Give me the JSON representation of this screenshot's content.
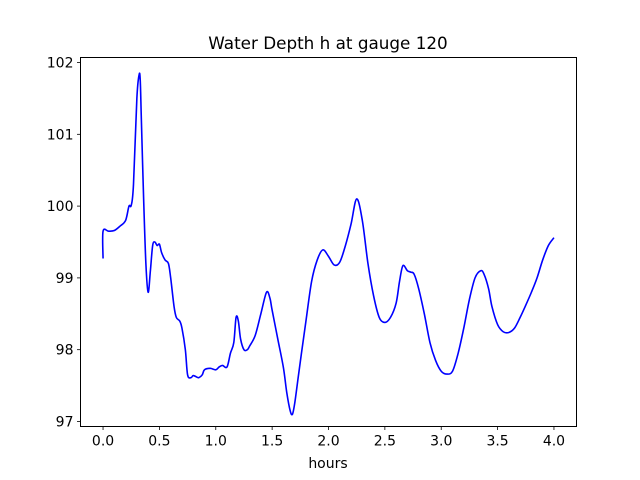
{
  "chart_data": {
    "type": "line",
    "title": "Water Depth h at gauge 120",
    "xlabel": "hours",
    "ylabel": "",
    "xlim": [
      -0.2,
      4.2
    ],
    "ylim": [
      96.93,
      102.07
    ],
    "xticks": [
      0.0,
      0.5,
      1.0,
      1.5,
      2.0,
      2.5,
      3.0,
      3.5,
      4.0
    ],
    "xtick_labels": [
      "0.0",
      "0.5",
      "1.0",
      "1.5",
      "2.0",
      "2.5",
      "3.0",
      "3.5",
      "4.0"
    ],
    "yticks": [
      97,
      98,
      99,
      100,
      101,
      102
    ],
    "ytick_labels": [
      "97",
      "98",
      "99",
      "100",
      "101",
      "102"
    ],
    "grid": false,
    "line_color": "#0000ff",
    "series": [
      {
        "x": [
          0.0,
          0.0,
          0.05,
          0.1,
          0.15,
          0.2,
          0.23,
          0.25,
          0.27,
          0.3,
          0.32,
          0.33,
          0.34,
          0.36,
          0.38,
          0.4,
          0.42,
          0.44,
          0.46,
          0.48,
          0.5,
          0.52,
          0.55,
          0.58,
          0.6,
          0.63,
          0.65,
          0.68,
          0.7,
          0.73,
          0.75,
          0.78,
          0.8,
          0.83,
          0.85,
          0.88,
          0.9,
          0.95,
          1.0,
          1.03,
          1.06,
          1.1,
          1.13,
          1.16,
          1.18,
          1.2,
          1.22,
          1.25,
          1.28,
          1.3,
          1.35,
          1.4,
          1.45,
          1.48,
          1.5,
          1.55,
          1.6,
          1.63,
          1.66,
          1.68,
          1.7,
          1.73,
          1.76,
          1.8,
          1.85,
          1.9,
          1.95,
          2.0,
          2.05,
          2.1,
          2.15,
          2.2,
          2.25,
          2.3,
          2.35,
          2.4,
          2.45,
          2.5,
          2.55,
          2.6,
          2.63,
          2.66,
          2.7,
          2.73,
          2.76,
          2.8,
          2.85,
          2.9,
          2.95,
          3.0,
          3.05,
          3.1,
          3.15,
          3.2,
          3.25,
          3.3,
          3.35,
          3.38,
          3.42,
          3.45,
          3.5,
          3.55,
          3.6,
          3.65,
          3.7,
          3.75,
          3.8,
          3.85,
          3.9,
          3.95,
          4.0
        ],
        "values": [
          99.27,
          99.65,
          99.65,
          99.66,
          99.72,
          99.8,
          100.0,
          100.01,
          100.3,
          101.5,
          101.83,
          101.75,
          101.2,
          100.1,
          99.2,
          98.8,
          99.1,
          99.45,
          99.5,
          99.45,
          99.47,
          99.35,
          99.25,
          99.2,
          99.0,
          98.6,
          98.45,
          98.4,
          98.3,
          98.0,
          97.65,
          97.61,
          97.64,
          97.62,
          97.61,
          97.65,
          97.72,
          97.74,
          97.72,
          97.76,
          97.78,
          97.76,
          97.95,
          98.1,
          98.45,
          98.4,
          98.15,
          98.0,
          98.0,
          98.05,
          98.2,
          98.5,
          98.8,
          98.72,
          98.55,
          98.15,
          97.75,
          97.4,
          97.15,
          97.1,
          97.25,
          97.6,
          97.95,
          98.4,
          98.95,
          99.25,
          99.39,
          99.3,
          99.18,
          99.22,
          99.45,
          99.75,
          100.1,
          99.8,
          99.2,
          98.75,
          98.45,
          98.38,
          98.45,
          98.65,
          98.95,
          99.17,
          99.1,
          99.08,
          99.05,
          98.85,
          98.5,
          98.1,
          97.85,
          97.7,
          97.66,
          97.7,
          97.95,
          98.3,
          98.7,
          99.0,
          99.1,
          99.05,
          98.85,
          98.6,
          98.35,
          98.25,
          98.24,
          98.3,
          98.45,
          98.62,
          98.8,
          99.0,
          99.25,
          99.45,
          99.56
        ]
      }
    ]
  }
}
